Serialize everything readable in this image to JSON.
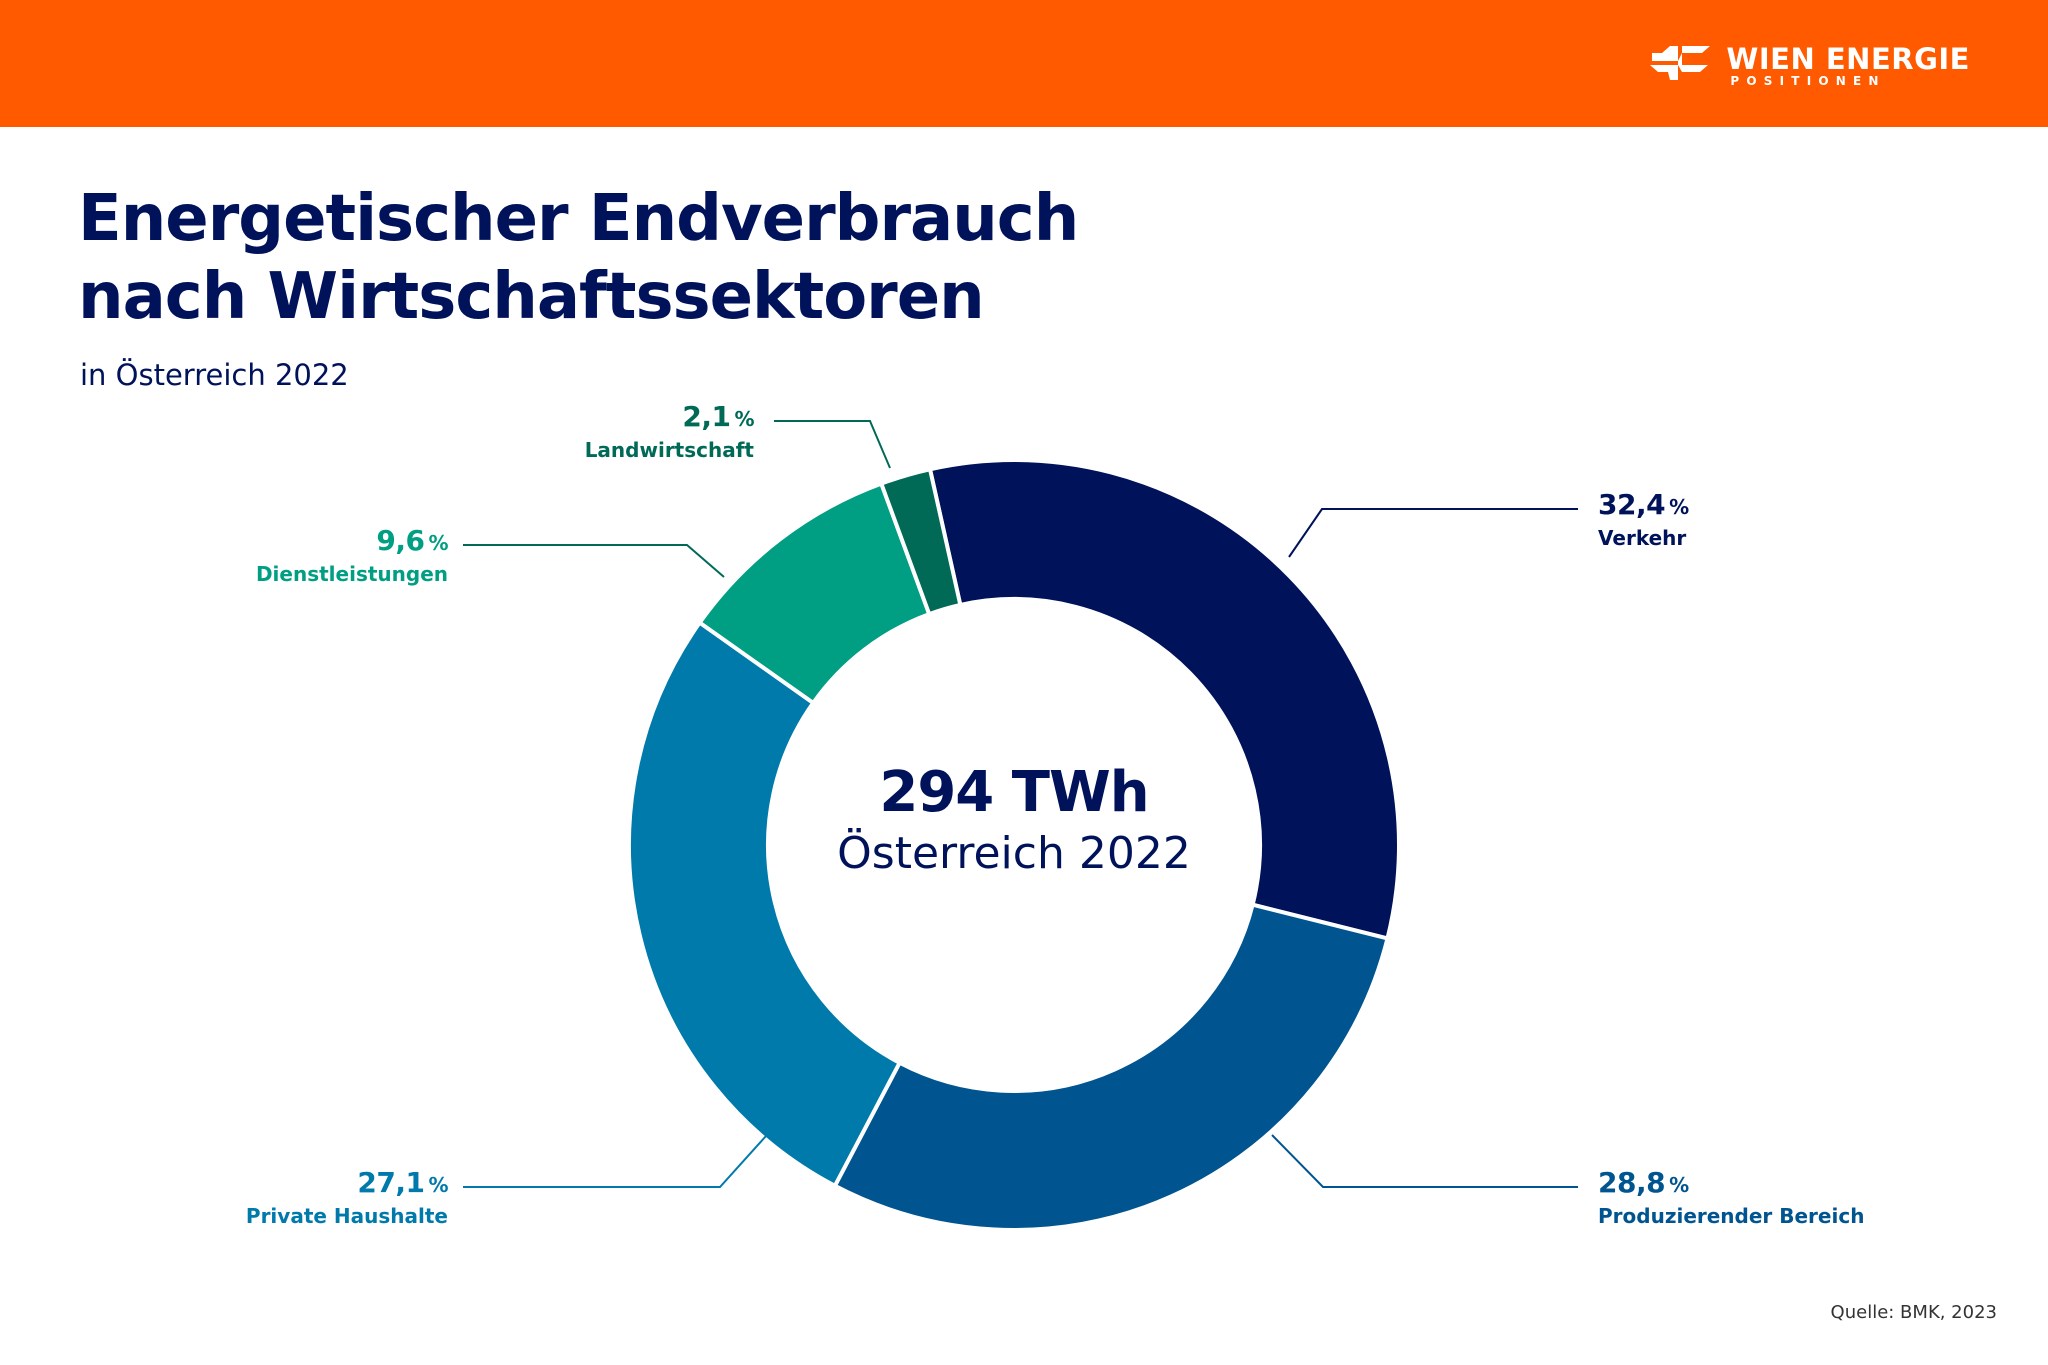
{
  "header": {
    "brand_name": "WIEN ENERGIE",
    "brand_sub": "POSITIONEN",
    "bar_color": "#ff5a00"
  },
  "title": {
    "line1": "Energetischer Endverbrauch",
    "line2": "nach Wirtschaftssektoren"
  },
  "subtitle": "in Österreich 2022",
  "center": {
    "value": "294 TWh",
    "label": "Österreich 2022"
  },
  "callouts": {
    "verkehr": {
      "pct": "32,4",
      "unit": "%",
      "name": "Verkehr",
      "color": "#00125a"
    },
    "produzierender": {
      "pct": "28,8",
      "unit": "%",
      "name": "Produzierender Bereich",
      "color": "#00548f"
    },
    "haushalte": {
      "pct": "27,1",
      "unit": "%",
      "name": "Private Haushalte",
      "color": "#007aab"
    },
    "dienstleistungen": {
      "pct": "9,6",
      "unit": "%",
      "name": "Dienstleistungen",
      "color": "#009e82"
    },
    "landwirtschaft": {
      "pct": "2,1",
      "unit": "%",
      "name": "Landwirtschaft",
      "color": "#006a57"
    }
  },
  "source": "Quelle: BMK, 2023",
  "chart_data": {
    "type": "pie",
    "variant": "donut",
    "title": "Energetischer Endverbrauch nach Wirtschaftssektoren",
    "subtitle": "in Österreich 2022",
    "center_text": [
      "294 TWh",
      "Österreich 2022"
    ],
    "unit": "%",
    "total": "294 TWh",
    "categories": [
      "Verkehr",
      "Produzierender Bereich",
      "Private Haushalte",
      "Dienstleistungen",
      "Landwirtschaft"
    ],
    "values": [
      32.4,
      28.8,
      27.1,
      9.6,
      2.1
    ],
    "value_labels": [
      "32,4 %",
      "28,8 %",
      "27,1 %",
      "9,6 %",
      "2,1 %"
    ],
    "colors": [
      "#00125a",
      "#00548f",
      "#007aab",
      "#009e82",
      "#006a57"
    ],
    "start_angle_deg": -12.6,
    "direction": "clockwise",
    "legend": "callout labels with leader lines",
    "source": "Quelle: BMK, 2023"
  }
}
